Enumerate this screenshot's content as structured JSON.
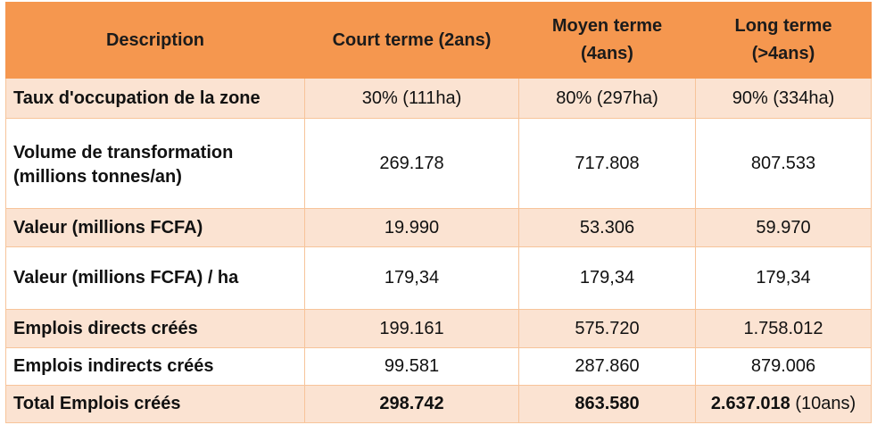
{
  "table": {
    "headers": {
      "description": "Description",
      "court": "Court terme (2ans)",
      "moyen_l1": "Moyen terme",
      "moyen_l2": "(4ans)",
      "long_l1": "Long terme",
      "long_l2": "(>4ans)"
    },
    "rows": [
      {
        "label": "Taux d'occupation de la zone",
        "court": "30% (111ha)",
        "moyen": "80% (297ha)",
        "long": "90% (334ha)"
      },
      {
        "label_l1": "Volume de transformation",
        "label_l2": "(millions tonnes/an)",
        "court": "269.178",
        "moyen": "717.808",
        "long": "807.533"
      },
      {
        "label": "Valeur (millions FCFA)",
        "court": "19.990",
        "moyen": "53.306",
        "long": "59.970"
      },
      {
        "label": "Valeur (millions FCFA) / ha",
        "court": "179,34",
        "moyen": "179,34",
        "long": "179,34"
      },
      {
        "label": "Emplois directs créés",
        "court": "199.161",
        "moyen": "575.720",
        "long": "1.758.012"
      },
      {
        "label": "Emplois indirects créés",
        "court": "99.581",
        "moyen": "287.860",
        "long": "879.006"
      },
      {
        "label": "Total Emplois créés",
        "court": "298.742",
        "moyen": "863.580",
        "long": "2.637.018",
        "long_suffix": " (10ans)"
      }
    ]
  },
  "colors": {
    "header_bg": "#f5974f",
    "row_shade": "#fbe3d2",
    "border": "#f7c49a"
  }
}
